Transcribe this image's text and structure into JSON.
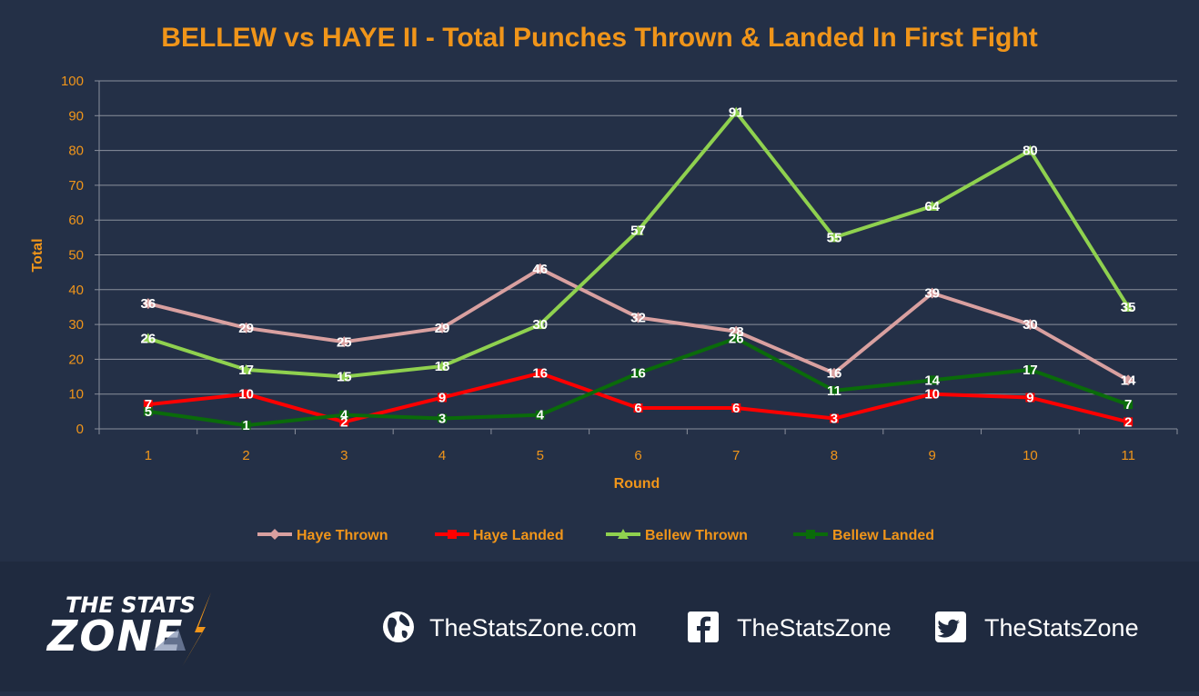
{
  "chart_data": {
    "type": "line",
    "title": "BELLEW vs HAYE II - Total Punches Thrown & Landed In First Fight",
    "xlabel": "Round",
    "ylabel": "Total",
    "categories": [
      "1",
      "2",
      "3",
      "4",
      "5",
      "6",
      "7",
      "8",
      "9",
      "10",
      "11"
    ],
    "ylim": [
      0,
      100
    ],
    "yticks": [
      0,
      10,
      20,
      30,
      40,
      50,
      60,
      70,
      80,
      90,
      100
    ],
    "grid": true,
    "legend_position": "bottom",
    "series": [
      {
        "name": "Haye Thrown",
        "color": "#d9a0a0",
        "marker": "diamond",
        "values": [
          36,
          29,
          25,
          29,
          46,
          32,
          28,
          16,
          39,
          30,
          14
        ]
      },
      {
        "name": "Haye Landed",
        "color": "#ff0000",
        "marker": "square",
        "values": [
          7,
          10,
          2,
          9,
          16,
          6,
          6,
          3,
          10,
          9,
          2
        ]
      },
      {
        "name": "Bellew Thrown",
        "color": "#8fd14f",
        "marker": "triangle",
        "values": [
          26,
          17,
          15,
          18,
          30,
          57,
          91,
          55,
          64,
          80,
          35
        ]
      },
      {
        "name": "Bellew Landed",
        "color": "#0a6b0a",
        "marker": "square",
        "values": [
          5,
          1,
          4,
          3,
          4,
          16,
          26,
          11,
          14,
          17,
          7
        ]
      }
    ]
  },
  "footer": {
    "logo_line1": "THE STATS",
    "logo_line2": "ZONE",
    "website": "TheStatsZone.com",
    "facebook": "TheStatsZone",
    "twitter": "TheStatsZone",
    "icons": [
      "globe-icon",
      "facebook-icon",
      "twitter-icon"
    ]
  }
}
